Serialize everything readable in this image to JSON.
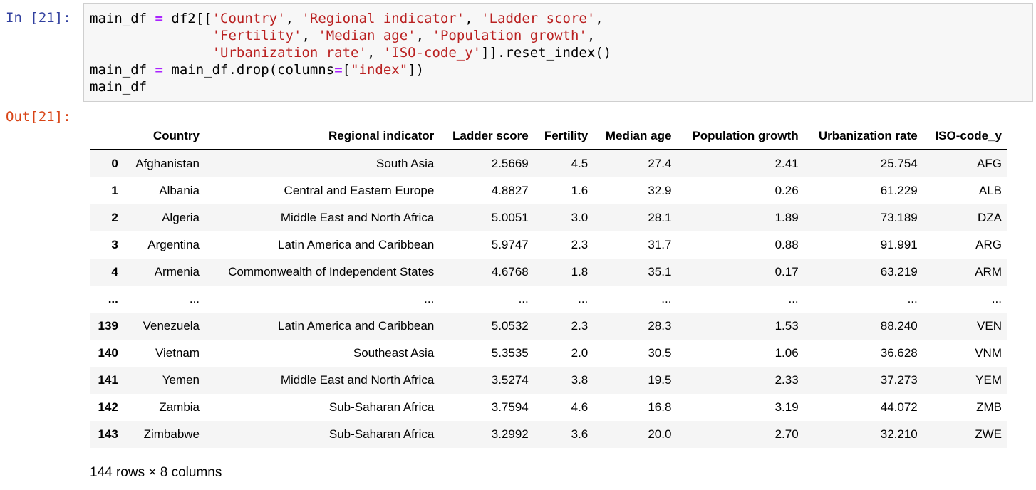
{
  "input_prompt": "In [21]:",
  "output_prompt": "Out[21]:",
  "code": {
    "line1": {
      "a": "main_df ",
      "eq": "=",
      "b": " df2[[",
      "s1": "'Country'",
      "c1": ", ",
      "s2": "'Regional indicator'",
      "c2": ", ",
      "s3": "'Ladder score'",
      "c3": ","
    },
    "line2": {
      "indent": "               ",
      "s1": "'Fertility'",
      "c1": ", ",
      "s2": "'Median age'",
      "c2": ", ",
      "s3": "'Population growth'",
      "c3": ","
    },
    "line3": {
      "indent": "               ",
      "s1": "'Urbanization rate'",
      "c1": ", ",
      "s2": "'ISO-code_y'",
      "c2": "]].reset_index()"
    },
    "line4": {
      "a": "main_df ",
      "eq": "=",
      "b": " main_df.drop(columns",
      "eq2": "=",
      "c": "[",
      "s1": "\"index\"",
      "d": "])"
    },
    "line5": "main_df"
  },
  "table": {
    "columns": [
      "",
      "Country",
      "Regional indicator",
      "Ladder score",
      "Fertility",
      "Median age",
      "Population growth",
      "Urbanization rate",
      "ISO-code_y"
    ],
    "rows": [
      [
        "0",
        "Afghanistan",
        "South Asia",
        "2.5669",
        "4.5",
        "27.4",
        "2.41",
        "25.754",
        "AFG"
      ],
      [
        "1",
        "Albania",
        "Central and Eastern Europe",
        "4.8827",
        "1.6",
        "32.9",
        "0.26",
        "61.229",
        "ALB"
      ],
      [
        "2",
        "Algeria",
        "Middle East and North Africa",
        "5.0051",
        "3.0",
        "28.1",
        "1.89",
        "73.189",
        "DZA"
      ],
      [
        "3",
        "Argentina",
        "Latin America and Caribbean",
        "5.9747",
        "2.3",
        "31.7",
        "0.88",
        "91.991",
        "ARG"
      ],
      [
        "4",
        "Armenia",
        "Commonwealth of Independent States",
        "4.6768",
        "1.8",
        "35.1",
        "0.17",
        "63.219",
        "ARM"
      ],
      [
        "...",
        "...",
        "...",
        "...",
        "...",
        "...",
        "...",
        "...",
        "..."
      ],
      [
        "139",
        "Venezuela",
        "Latin America and Caribbean",
        "5.0532",
        "2.3",
        "28.3",
        "1.53",
        "88.240",
        "VEN"
      ],
      [
        "140",
        "Vietnam",
        "Southeast Asia",
        "5.3535",
        "2.0",
        "30.5",
        "1.06",
        "36.628",
        "VNM"
      ],
      [
        "141",
        "Yemen",
        "Middle East and North Africa",
        "3.5274",
        "3.8",
        "19.5",
        "2.33",
        "37.273",
        "YEM"
      ],
      [
        "142",
        "Zambia",
        "Sub-Saharan Africa",
        "3.7594",
        "4.6",
        "16.8",
        "3.19",
        "44.072",
        "ZMB"
      ],
      [
        "143",
        "Zimbabwe",
        "Sub-Saharan Africa",
        "3.2992",
        "3.6",
        "20.0",
        "2.70",
        "32.210",
        "ZWE"
      ]
    ]
  },
  "shape_text": "144 rows × 8 columns"
}
